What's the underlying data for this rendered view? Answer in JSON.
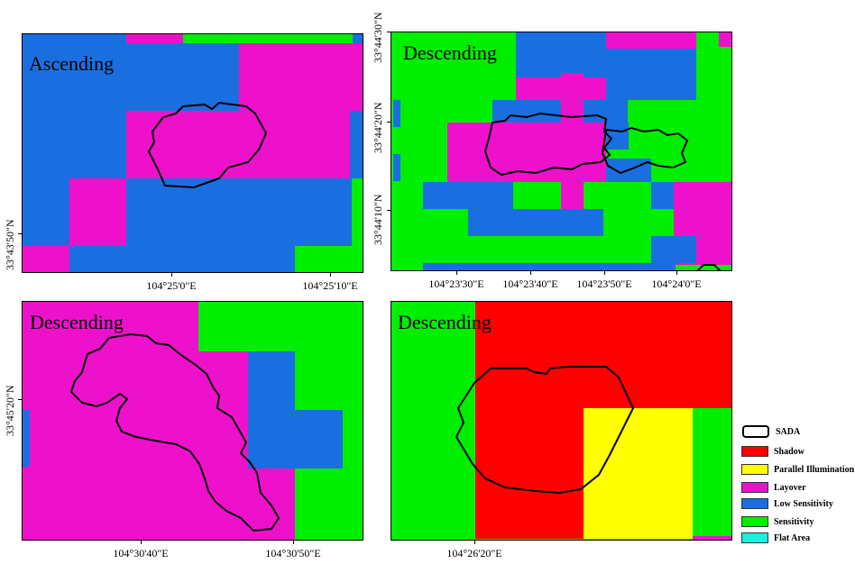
{
  "colors": {
    "shadow": "#ff0000",
    "parallel": "#ffff00",
    "layover": "#ee11cc",
    "low": "#1a6fe0",
    "sens": "#00ee00",
    "flat": "#1af0e0"
  },
  "panels": [
    {
      "title": "Ascending",
      "x_ticks": [
        "104°25'0\"E",
        "104°25'10\"E"
      ],
      "y_ticks": [
        "33°43'50\"N"
      ]
    },
    {
      "title": "Descending",
      "x_ticks": [
        "104°23'30\"E",
        "104°23'40\"E",
        "104°23'50\"E",
        "104°24'0\"E"
      ],
      "y_ticks": [
        "33°44'30\"N",
        "33°44'20\"N",
        "33°44'10\"N"
      ]
    },
    {
      "title": "Descending",
      "x_ticks": [
        "104°30'40\"E",
        "104°30'50\"E"
      ],
      "y_ticks": [
        "33°45'20\"N"
      ]
    },
    {
      "title": "Descending",
      "x_ticks": [
        "104°26'20\"E"
      ],
      "y_ticks": []
    }
  ],
  "legend": [
    {
      "label": "SADA",
      "color": "outline"
    },
    {
      "label": "Shadow",
      "color": "#ff0000"
    },
    {
      "label": "Parallel Illumination",
      "color": "#ffff00"
    },
    {
      "label": "Layover",
      "color": "#ee11cc"
    },
    {
      "label": "Low Sensitivity",
      "color": "#1a6fe0"
    },
    {
      "label": "Sensitivity",
      "color": "#00ee00"
    },
    {
      "label": "Flat Area",
      "color": "#1af0e0"
    }
  ]
}
